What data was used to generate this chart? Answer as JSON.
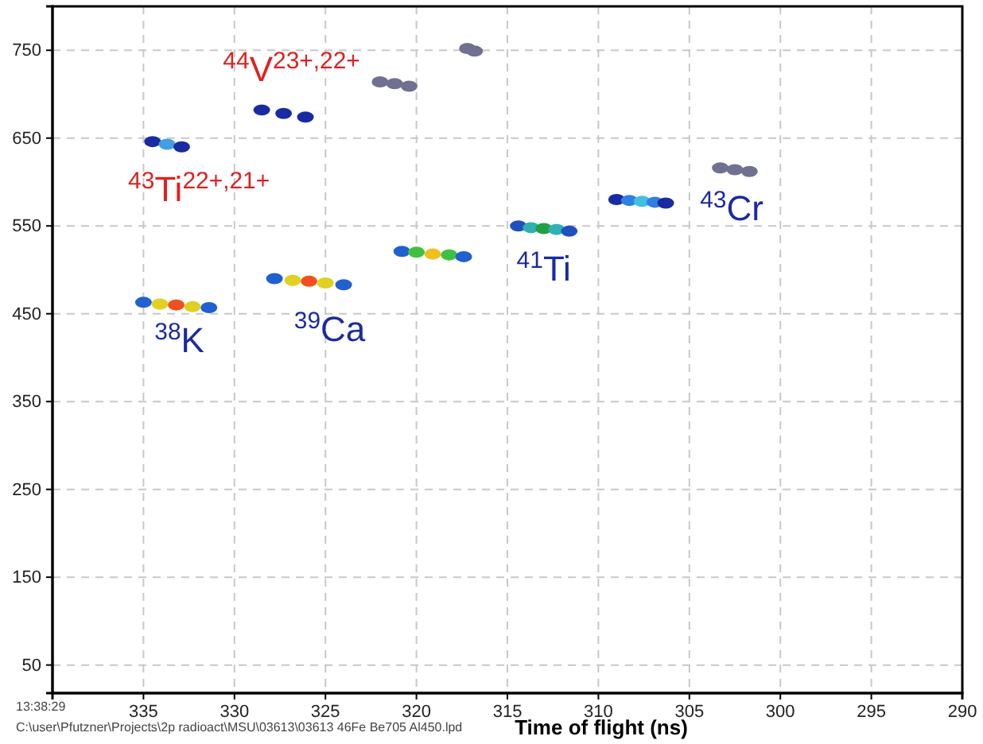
{
  "chart_data": {
    "type": "scatter",
    "xlabel": "Time of flight (ns)",
    "xlim": [
      340,
      290
    ],
    "ylim": [
      18,
      800
    ],
    "xticks": [
      335,
      330,
      325,
      320,
      315,
      310,
      305,
      300,
      295,
      290
    ],
    "yticks": [
      750,
      650,
      550,
      450,
      350,
      250,
      150,
      50
    ],
    "grid": true,
    "marker": "circle",
    "series": [
      {
        "x": [
          335,
          334.1,
          333.2,
          332.3,
          331.4
        ],
        "values": [
          463,
          461,
          460,
          458,
          457
        ],
        "colors": [
          "#2060d0",
          "#e0d020",
          "#f05020",
          "#e0d020",
          "#2060d0"
        ]
      },
      {
        "x": [
          327.8,
          326.8,
          325.9,
          325,
          324
        ],
        "values": [
          490,
          488,
          487,
          485,
          483
        ],
        "colors": [
          "#2060d0",
          "#e0d020",
          "#f05020",
          "#e0d020",
          "#2060d0"
        ]
      },
      {
        "x": [
          320.8,
          320,
          319.1,
          318.2,
          317.4
        ],
        "values": [
          521,
          520,
          518,
          517,
          515
        ],
        "colors": [
          "#2060d0",
          "#40c040",
          "#f0c020",
          "#40c040",
          "#2060d0"
        ]
      },
      {
        "x": [
          314.4,
          313.7,
          313,
          312.3,
          311.6
        ],
        "values": [
          550,
          548,
          547,
          546,
          544
        ],
        "colors": [
          "#2050c0",
          "#30b0b0",
          "#20a040",
          "#30b0b0",
          "#2050c0"
        ]
      },
      {
        "x": [
          309,
          308.3,
          307.6,
          306.9,
          306.3
        ],
        "values": [
          580,
          579,
          578,
          577,
          576
        ],
        "colors": [
          "#1a2aa0",
          "#3080e0",
          "#40c0e0",
          "#3080e0",
          "#1a2aa0"
        ]
      },
      {
        "x": [
          334.5,
          333.7,
          332.9
        ],
        "values": [
          646,
          643,
          640
        ],
        "colors": [
          "#1a2aa0",
          "#40a0e0",
          "#1a2aa0"
        ]
      },
      {
        "x": [
          328.5,
          327.3,
          326.1
        ],
        "values": [
          682,
          678,
          674
        ],
        "colors": [
          "#1a2aa0",
          "#1a2aa0",
          "#1a2aa0"
        ]
      },
      {
        "x": [
          322,
          321.2,
          320.4
        ],
        "values": [
          714,
          712,
          709
        ],
        "colors": [
          "#707090",
          "#707090",
          "#707090"
        ]
      },
      {
        "x": [
          303.3,
          302.5,
          301.7
        ],
        "values": [
          616,
          614,
          612
        ],
        "colors": [
          "#707090",
          "#707090",
          "#707090"
        ]
      },
      {
        "x": [
          317.2,
          316.8
        ],
        "values": [
          752,
          749
        ],
        "colors": [
          "#707090",
          "#707090"
        ]
      }
    ],
    "annotations": [
      {
        "text": "$^{38}$K",
        "x": 333.2,
        "y": 460
      },
      {
        "text": "$^{39}$Ca",
        "x": 325.9,
        "y": 487
      },
      {
        "text": "$^{41}$Ti",
        "x": 313,
        "y": 547
      },
      {
        "text": "$^{43}$Cr",
        "x": 302.5,
        "y": 614
      },
      {
        "text": "$^{43}$Ti$^{22+,21+}$",
        "x": 333.7,
        "y": 643
      },
      {
        "text": "$^{44}$V$^{23+,22+}$",
        "x": 327.3,
        "y": 678
      },
      "13:38:29",
      "C:\\user\\Pfutzner\\Projects\\2p radioact\\MSU\\03613\\03613  46Fe  Be705  Al450.lpd"
    ]
  }
}
